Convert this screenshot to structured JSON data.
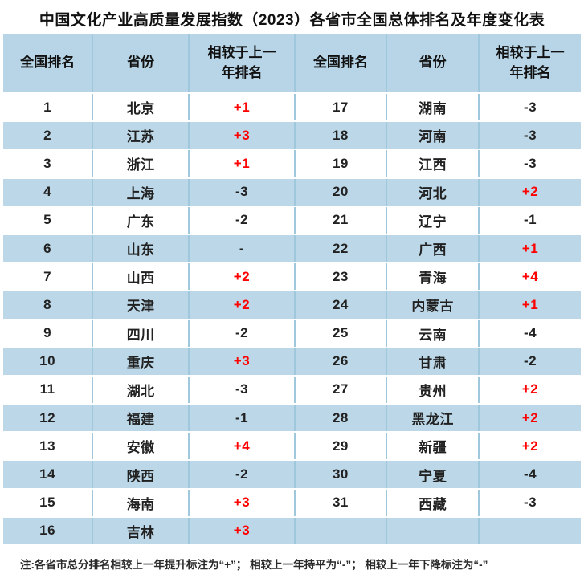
{
  "title": "中国文化产业高质量发展指数（2023）各省市全国总体排名及年度变化表",
  "table": {
    "headers": [
      "全国排名",
      "省份",
      "相较于上一年排名",
      "全国排名",
      "省份",
      "相较于上一年排名"
    ],
    "rows": [
      [
        "1",
        "北京",
        "+1",
        "17",
        "湖南",
        "-3"
      ],
      [
        "2",
        "江苏",
        "+3",
        "18",
        "河南",
        "-3"
      ],
      [
        "3",
        "浙江",
        "+1",
        "19",
        "江西",
        "-3"
      ],
      [
        "4",
        "上海",
        "-3",
        "20",
        "河北",
        "+2"
      ],
      [
        "5",
        "广东",
        "-2",
        "21",
        "辽宁",
        "-1"
      ],
      [
        "6",
        "山东",
        "-",
        "22",
        "广西",
        "+1"
      ],
      [
        "7",
        "山西",
        "+2",
        "23",
        "青海",
        "+4"
      ],
      [
        "8",
        "天津",
        "+2",
        "24",
        "内蒙古",
        "+1"
      ],
      [
        "9",
        "四川",
        "-2",
        "25",
        "云南",
        "-4"
      ],
      [
        "10",
        "重庆",
        "+3",
        "26",
        "甘肃",
        "-2"
      ],
      [
        "11",
        "湖北",
        "-3",
        "27",
        "贵州",
        "+2"
      ],
      [
        "12",
        "福建",
        "-1",
        "28",
        "黑龙江",
        "+2"
      ],
      [
        "13",
        "安徽",
        "+4",
        "29",
        "新疆",
        "+2"
      ],
      [
        "14",
        "陕西",
        "-2",
        "30",
        "宁夏",
        "-4"
      ],
      [
        "15",
        "海南",
        "+3",
        "31",
        "西藏",
        "-3"
      ],
      [
        "16",
        "吉林",
        "+3",
        "",
        "",
        ""
      ]
    ]
  },
  "note": "注:各省市总分排名相较上一年提升标注为“+”； 相较上一年持平为“-”； 相较上一年下降标注为“-”",
  "colors": {
    "header_bg": "#b7d5e6",
    "row_alt_bg": "#bcd8e8",
    "divider": "#9fc8dd",
    "positive_red": "#fe0000",
    "text": "#212121"
  }
}
